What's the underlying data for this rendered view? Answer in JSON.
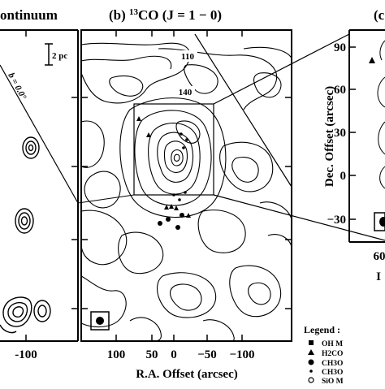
{
  "panels": {
    "a": {
      "title": "ontinuum",
      "x_ticks": [
        "-100"
      ],
      "scale_bar": "2 pc",
      "angle_label": "b = 0.0°"
    },
    "b": {
      "title_prefix": "(b) ",
      "title_super": "13",
      "title_main": "CO  (J = 1 − 0)",
      "x_ticks": [
        "100",
        "50",
        "0",
        "−50",
        "−100"
      ],
      "contour_labels": [
        "110",
        "140"
      ],
      "xlabel": "R.A. Offset  (arcsec)"
    },
    "c": {
      "title": "(c",
      "y_ticks": [
        "90",
        "60",
        "30",
        "0",
        "−30"
      ],
      "x_tick_partial": "60",
      "ylabel": "Dec. Offset  (arcsec)",
      "xlabel_partial": "I"
    }
  },
  "legend": {
    "title": "Legend :",
    "items": [
      {
        "symbol": "filled-square",
        "label": "OH  M"
      },
      {
        "symbol": "filled-triangle",
        "label": "H2CO"
      },
      {
        "symbol": "filled-circle",
        "label": "CH3O"
      },
      {
        "symbol": "small-dot",
        "label": "CH3O"
      },
      {
        "symbol": "open-circle",
        "label": "SiO  M"
      }
    ]
  }
}
